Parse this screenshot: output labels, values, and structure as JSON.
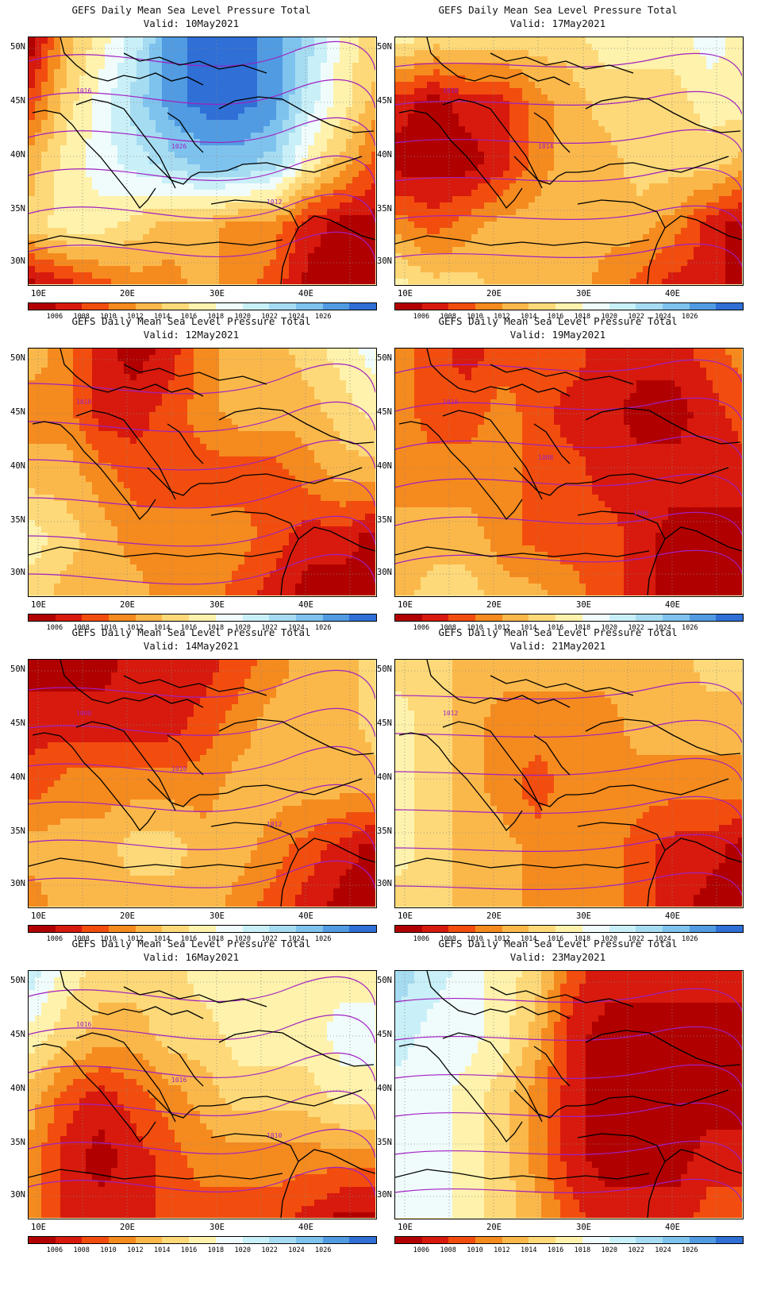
{
  "panels": [
    {
      "title": "GEFS Daily Mean Sea Level Pressure Total",
      "valid": "Valid: 10May2021",
      "labels": [
        "1016",
        "1026",
        "1012"
      ],
      "pattern": [
        [
          0,
          4,
          6,
          8,
          11,
          12,
          12,
          11,
          9,
          6,
          5
        ],
        [
          2,
          5,
          7,
          9,
          11,
          12,
          12,
          11,
          8,
          6,
          4
        ],
        [
          4,
          6,
          7,
          8,
          9,
          10,
          10,
          9,
          6,
          4,
          2
        ],
        [
          5,
          6,
          6,
          5,
          4,
          4,
          3,
          3,
          1,
          0,
          0
        ],
        [
          0,
          1,
          2,
          3,
          3,
          4,
          3,
          2,
          0,
          0,
          0
        ]
      ]
    },
    {
      "title": "GEFS Daily Mean Sea Level Pressure Total",
      "valid": "Valid: 17May2021",
      "labels": [
        "1010",
        "1014"
      ],
      "pattern": [
        [
          6,
          5,
          5,
          5,
          5,
          5,
          6,
          6,
          6,
          7,
          6
        ],
        [
          1,
          0,
          1,
          1,
          3,
          4,
          5,
          5,
          5,
          6,
          6
        ],
        [
          0,
          0,
          0,
          1,
          3,
          4,
          4,
          5,
          5,
          5,
          4
        ],
        [
          3,
          2,
          3,
          4,
          4,
          4,
          4,
          4,
          3,
          1,
          0
        ],
        [
          6,
          5,
          5,
          4,
          4,
          4,
          3,
          2,
          1,
          1,
          0
        ]
      ]
    },
    {
      "title": "GEFS Daily Mean Sea Level Pressure Total",
      "valid": "Valid: 12May2021",
      "labels": [
        "1010"
      ],
      "pattern": [
        [
          4,
          3,
          1,
          0,
          1,
          3,
          4,
          4,
          5,
          6,
          7
        ],
        [
          3,
          3,
          1,
          1,
          2,
          3,
          4,
          4,
          4,
          5,
          6
        ],
        [
          4,
          4,
          3,
          2,
          2,
          2,
          2,
          2,
          3,
          4,
          4
        ],
        [
          6,
          5,
          4,
          3,
          3,
          3,
          3,
          2,
          1,
          1,
          0
        ],
        [
          5,
          4,
          4,
          4,
          3,
          3,
          2,
          1,
          0,
          0,
          0
        ]
      ]
    },
    {
      "title": "GEFS Daily Mean Sea Level Pressure Total",
      "valid": "Valid: 19May2021",
      "labels": [
        "1010",
        "1008",
        "1006"
      ],
      "pattern": [
        [
          3,
          2,
          1,
          2,
          2,
          2,
          1,
          1,
          1,
          2,
          3
        ],
        [
          3,
          2,
          2,
          3,
          2,
          1,
          1,
          0,
          0,
          1,
          2
        ],
        [
          3,
          3,
          3,
          3,
          2,
          2,
          1,
          1,
          1,
          1,
          1
        ],
        [
          4,
          4,
          4,
          3,
          2,
          2,
          2,
          1,
          0,
          0,
          0
        ],
        [
          4,
          5,
          5,
          4,
          4,
          3,
          2,
          1,
          0,
          0,
          0
        ]
      ]
    },
    {
      "title": "GEFS Daily Mean Sea Level Pressure Total",
      "valid": "Valid: 14May2021",
      "labels": [
        "1008",
        "1010",
        "1012"
      ],
      "pattern": [
        [
          0,
          0,
          0,
          1,
          1,
          1,
          2,
          3,
          4,
          4,
          5
        ],
        [
          1,
          1,
          1,
          1,
          1,
          2,
          3,
          4,
          4,
          4,
          5
        ],
        [
          2,
          3,
          3,
          3,
          3,
          3,
          4,
          4,
          4,
          4,
          4
        ],
        [
          4,
          4,
          4,
          5,
          5,
          4,
          4,
          3,
          2,
          1,
          0
        ],
        [
          3,
          4,
          4,
          4,
          4,
          4,
          3,
          2,
          1,
          0,
          0
        ]
      ]
    },
    {
      "title": "GEFS Daily Mean Sea Level Pressure Total",
      "valid": "Valid: 21May2021",
      "labels": [
        "1012"
      ],
      "pattern": [
        [
          5,
          5,
          4,
          4,
          4,
          4,
          4,
          4,
          4,
          5,
          5
        ],
        [
          6,
          5,
          4,
          3,
          3,
          3,
          3,
          4,
          4,
          4,
          4
        ],
        [
          6,
          5,
          4,
          3,
          2,
          3,
          3,
          3,
          3,
          3,
          3
        ],
        [
          6,
          5,
          4,
          4,
          3,
          3,
          3,
          2,
          1,
          1,
          0
        ],
        [
          5,
          5,
          4,
          4,
          3,
          3,
          3,
          2,
          1,
          0,
          0
        ]
      ]
    },
    {
      "title": "GEFS Daily Mean Sea Level Pressure Total",
      "valid": "Valid: 16May2021",
      "labels": [
        "1016",
        "1016",
        "1010"
      ],
      "pattern": [
        [
          8,
          6,
          5,
          5,
          5,
          6,
          6,
          6,
          6,
          6,
          6
        ],
        [
          6,
          5,
          4,
          4,
          5,
          5,
          6,
          6,
          6,
          7,
          7
        ],
        [
          4,
          2,
          1,
          2,
          3,
          4,
          5,
          5,
          5,
          6,
          6
        ],
        [
          3,
          1,
          0,
          1,
          2,
          3,
          3,
          3,
          3,
          3,
          3
        ],
        [
          3,
          1,
          1,
          1,
          2,
          2,
          2,
          2,
          1,
          0,
          0
        ]
      ]
    },
    {
      "title": "GEFS Daily Mean Sea Level Pressure Total",
      "valid": "Valid: 23May2021",
      "labels": [],
      "pattern": [
        [
          9,
          8,
          7,
          6,
          5,
          2,
          1,
          1,
          1,
          1,
          1
        ],
        [
          8,
          7,
          7,
          6,
          4,
          1,
          0,
          0,
          0,
          0,
          0
        ],
        [
          7,
          7,
          6,
          5,
          3,
          1,
          0,
          0,
          0,
          0,
          0
        ],
        [
          7,
          7,
          6,
          5,
          3,
          1,
          0,
          0,
          0,
          1,
          1
        ],
        [
          7,
          7,
          6,
          5,
          4,
          2,
          1,
          1,
          1,
          2,
          2
        ]
      ]
    }
  ],
  "lat_labels": [
    "50N",
    "45N",
    "40N",
    "35N",
    "30N"
  ],
  "lon_labels": [
    "10E",
    "20E",
    "30E",
    "40E"
  ],
  "colorbar": {
    "ticks": [
      "1006",
      "1008",
      "1010",
      "1012",
      "1014",
      "1016",
      "1018",
      "1020",
      "1022",
      "1024",
      "1026"
    ],
    "colors": [
      "#b10000",
      "#d71a0d",
      "#f24d0e",
      "#f58a1e",
      "#fbb84a",
      "#fdd979",
      "#fff2ac",
      "#f0fcfc",
      "#c9f0f8",
      "#a6dcf2",
      "#7ec3ee",
      "#519be2",
      "#2f6fd6"
    ]
  },
  "contour_color": "#a020c0",
  "land_color": "#000000"
}
